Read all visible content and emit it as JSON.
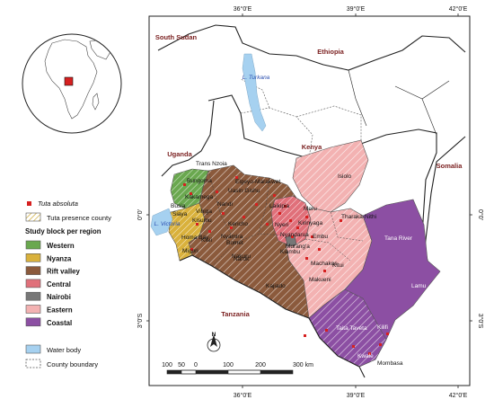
{
  "inset": {
    "marker": "red square on Kenya"
  },
  "coords": {
    "top": [
      "36°0'E",
      "39°0'E",
      "42°0'E"
    ],
    "bottom": [
      "36°0'E",
      "39°0'E",
      "42°0'E"
    ],
    "left": [
      "0°0'",
      "3°0'S"
    ],
    "right": [
      "0°0'",
      "3°0'S"
    ]
  },
  "countries": {
    "south_sudan": "South Sudan",
    "ethiopia": "Ethiopia",
    "uganda": "Uganda",
    "kenya": "Kenya",
    "somalia": "Somalia",
    "tanzania": "Tanzania"
  },
  "water_labels": {
    "turkana": "L. Turkana",
    "victoria": "L. Victoria"
  },
  "counties": [
    "Trans Nzoia",
    "Bungoma",
    "Elgeyo-Marakwet",
    "Uasin Gishu",
    "Kakamega",
    "Busia",
    "Siaya",
    "Kisumu",
    "Homa Bay",
    "Migori",
    "Kisii",
    "Nyamira",
    "Bomet",
    "Kericho",
    "Nandi",
    "Vihiga",
    "Nakuru",
    "Laikipia",
    "Meru",
    "Isiolo",
    "Tharaka-Nithi",
    "Nyeri",
    "Nyandarua",
    "Kirinyaga",
    "Embu",
    "Murang'a",
    "Kiambu",
    "Machakos",
    "Kitui",
    "Makueni",
    "Narok",
    "Kajiado",
    "Tana River",
    "Lamu",
    "Kilifi",
    "Taita Taveta",
    "Kwale",
    "Mombasa"
  ],
  "legend": {
    "tuta": "Tuta absoluta",
    "presence": "Tuta presence county",
    "study_title": "Study block per region",
    "regions": [
      {
        "name": "Western",
        "color": "#6aa84f"
      },
      {
        "name": "Nyanza",
        "color": "#d9b13c"
      },
      {
        "name": "Rift valley",
        "color": "#8b5a3c"
      },
      {
        "name": "Central",
        "color": "#e0707a"
      },
      {
        "name": "Nairobi",
        "color": "#777777"
      },
      {
        "name": "Eastern",
        "color": "#f3b2b2"
      },
      {
        "name": "Coastal",
        "color": "#8c4fa3"
      }
    ],
    "water": "Water body",
    "county_boundary": "County boundary"
  },
  "scale": {
    "ticks": [
      "100",
      "50",
      "0",
      "100",
      "200",
      "300 km"
    ]
  },
  "north": "N",
  "colors": {
    "water": "#a6d1f0",
    "point": "#d62020",
    "country_label": "#7a1f1f",
    "map_frame": "#222222"
  }
}
